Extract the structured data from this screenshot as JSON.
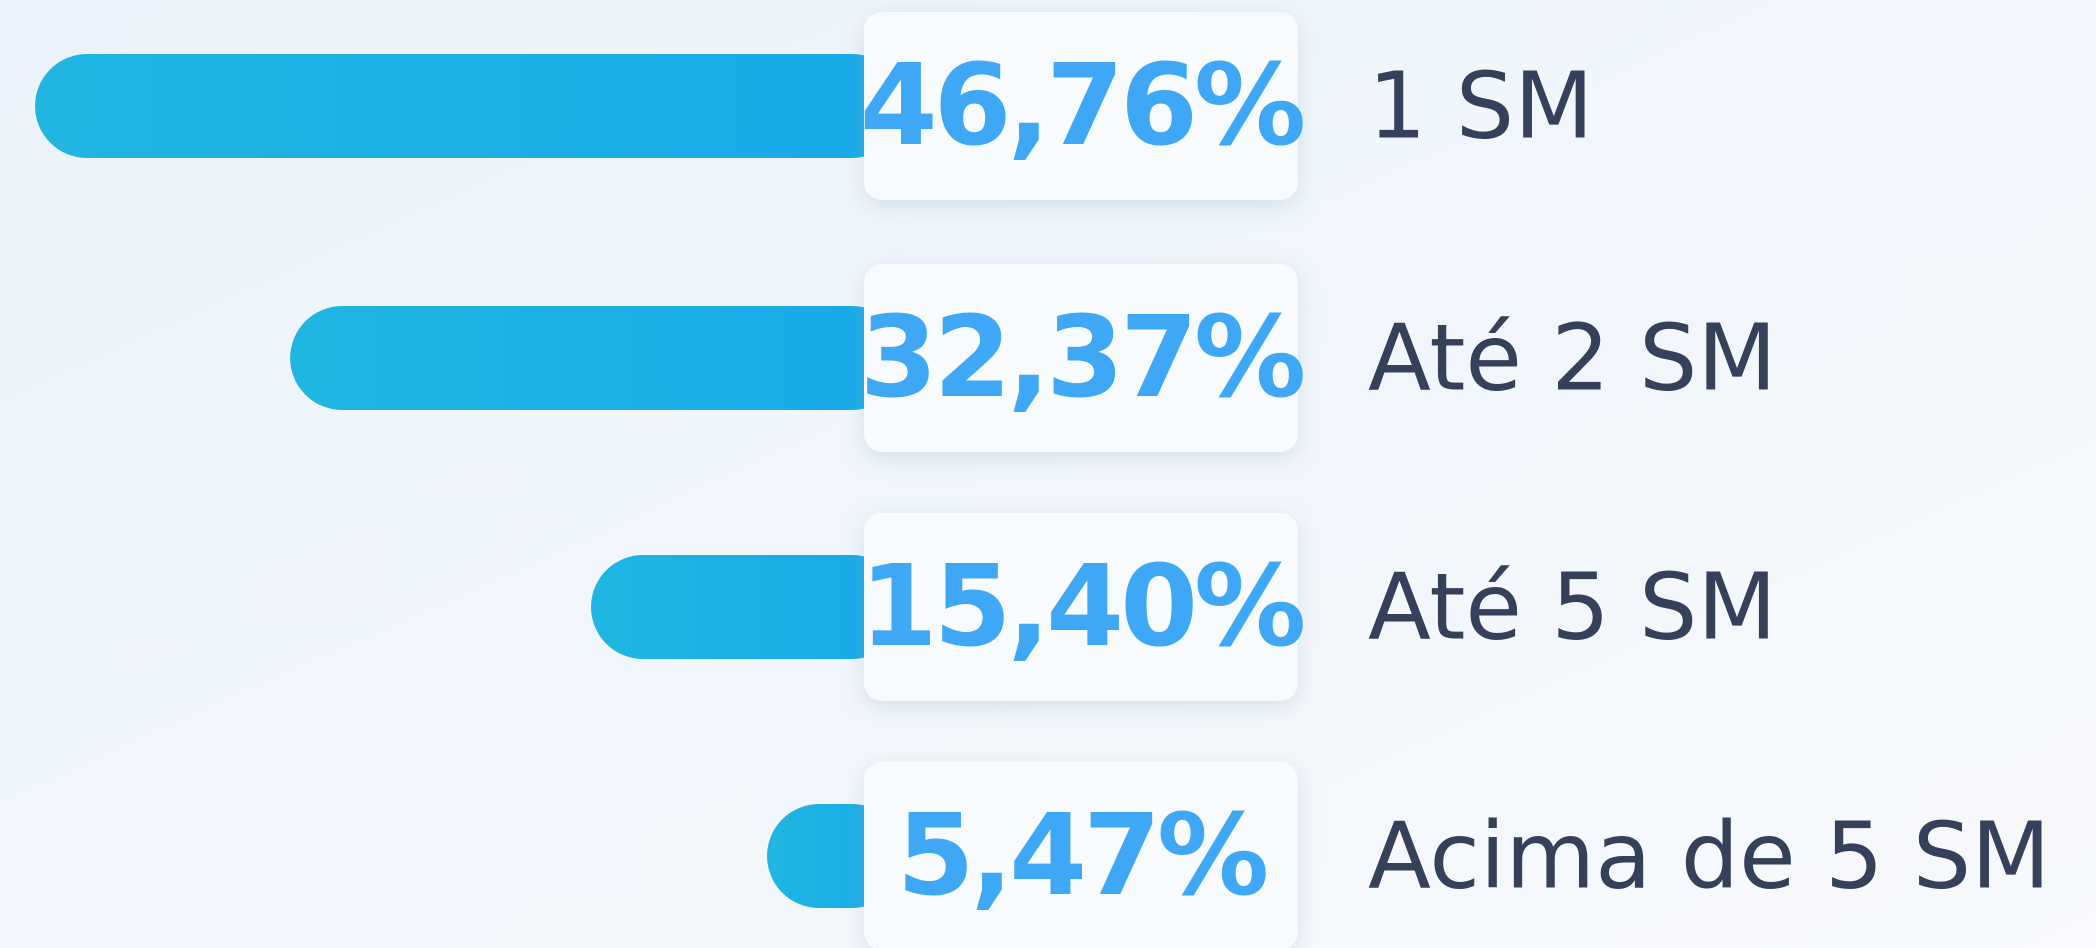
{
  "chart_data": {
    "type": "bar",
    "categories": [
      "1 SM",
      "Até 2 SM",
      "Até 5 SM",
      "Acima de 5 SM"
    ],
    "values": [
      46.76,
      32.37,
      15.4,
      5.47
    ],
    "value_labels": [
      "46,76%",
      "32,37%",
      "15,40%",
      "5,47%"
    ],
    "color": "#17a9e8"
  }
}
